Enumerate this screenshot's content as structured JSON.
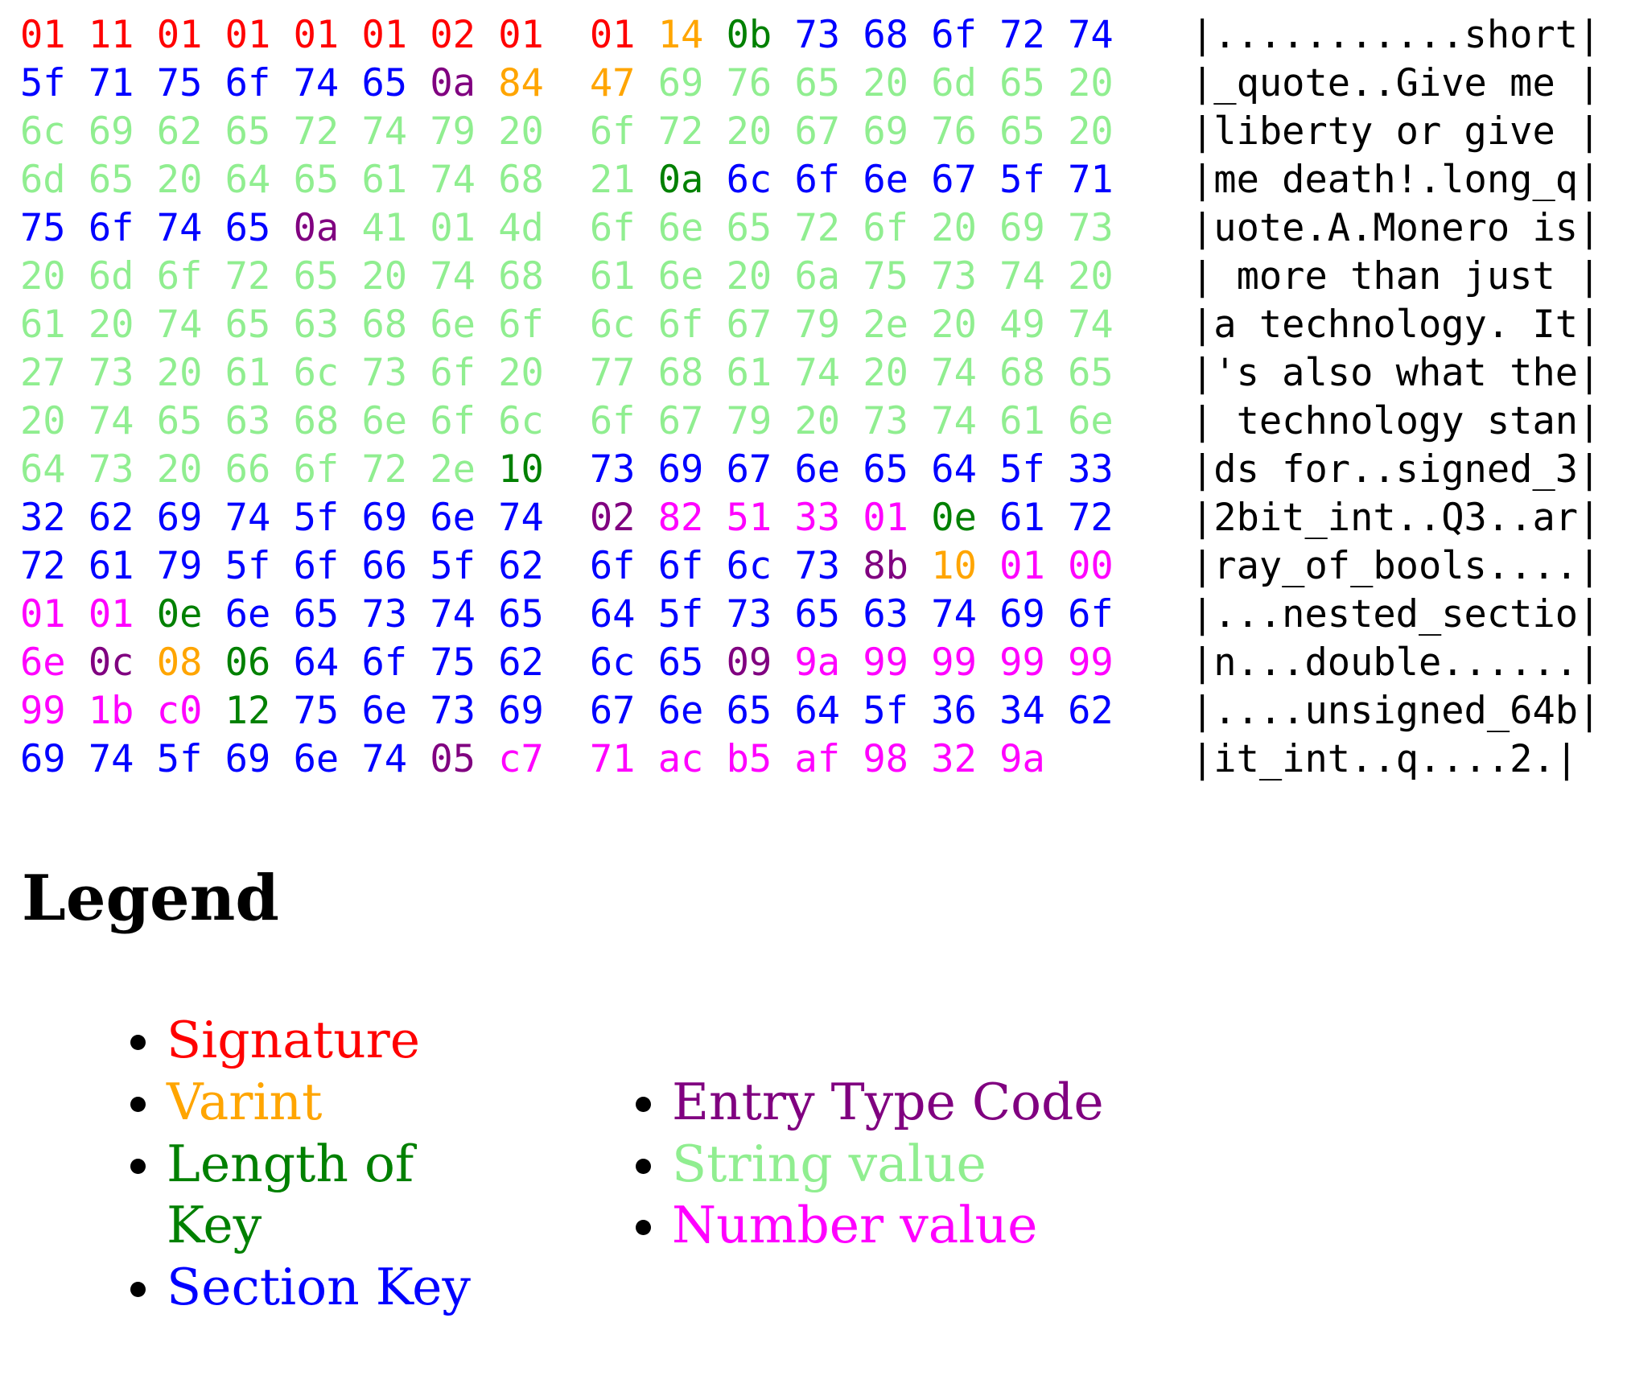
{
  "legend": {
    "title": "Legend",
    "left_items": [
      {
        "label": "Signature",
        "color": "r"
      },
      {
        "label": "Varint",
        "color": "o"
      },
      {
        "label": "Length of Key",
        "color": "g"
      },
      {
        "label": "Section Key",
        "color": "b"
      }
    ],
    "right_items": [
      {
        "label": "Entry Type Code",
        "color": "p"
      },
      {
        "label": "String value",
        "color": "s"
      },
      {
        "label": "Number value",
        "color": "m"
      }
    ]
  },
  "hexdump": {
    "colors": {
      "r": "#ff0000",
      "o": "#ffa500",
      "g": "#008000",
      "b": "#0000ff",
      "p": "#800080",
      "s": "#90ee90",
      "m": "#ff00ff"
    },
    "color_names": {
      "r": "signature",
      "o": "varint",
      "g": "length-of-key",
      "b": "section-key",
      "p": "entry-type-code",
      "s": "string-value",
      "m": "number-value"
    },
    "ascii_color": "#000000",
    "rows": [
      {
        "left": "01r 11r 01r 01r 01r 01r 02r 01r",
        "right": "01r 14o 0bg 73b 68b 6fb 72b 74b",
        "ascii": "|...........short|"
      },
      {
        "left": "5fb 71b 75b 6fb 74b 65b 0ap 84o",
        "right": "47o 69s 76s 65s 20s 6ds 65s 20s",
        "ascii": "|_quote..Give me |"
      },
      {
        "left": "6cs 69s 62s 65s 72s 74s 79s 20s",
        "right": "6fs 72s 20s 67s 69s 76s 65s 20s",
        "ascii": "|liberty or give |"
      },
      {
        "left": "6ds 65s 20s 64s 65s 61s 74s 68s",
        "right": "21s 0ag 6cb 6fb 6eb 67b 5fb 71b",
        "ascii": "|me death!.long_q|"
      },
      {
        "left": "75b 6fb 74b 65b 0ap 41s 01s 4ds",
        "right": "6fs 6es 65s 72s 6fs 20s 69s 73s",
        "ascii": "|uote.A.Monero is|"
      },
      {
        "left": "20s 6ds 6fs 72s 65s 20s 74s 68s",
        "right": "61s 6es 20s 6as 75s 73s 74s 20s",
        "ascii": "| more than just |"
      },
      {
        "left": "61s 20s 74s 65s 63s 68s 6es 6fs",
        "right": "6cs 6fs 67s 79s 2es 20s 49s 74s",
        "ascii": "|a technology. It|"
      },
      {
        "left": "27s 73s 20s 61s 6cs 73s 6fs 20s",
        "right": "77s 68s 61s 74s 20s 74s 68s 65s",
        "ascii": "|'s also what the|"
      },
      {
        "left": "20s 74s 65s 63s 68s 6es 6fs 6cs",
        "right": "6fs 67s 79s 20s 73s 74s 61s 6es",
        "ascii": "| technology stan|"
      },
      {
        "left": "64s 73s 20s 66s 6fs 72s 2es 10g",
        "right": "73b 69b 67b 6eb 65b 64b 5fb 33b",
        "ascii": "|ds for..signed_3|"
      },
      {
        "left": "32b 62b 69b 74b 5fb 69b 6eb 74b",
        "right": "02p 82m 51m 33m 01m 0eg 61b 72b",
        "ascii": "|2bit_int..Q3..ar|"
      },
      {
        "left": "72b 61b 79b 5fb 6fb 66b 5fb 62b",
        "right": "6fb 6fb 6cb 73b 8bp 10o 01m 00m",
        "ascii": "|ray_of_bools....|"
      },
      {
        "left": "01m 01m 0eg 6eb 65b 73b 74b 65b",
        "right": "64b 5fb 73b 65b 63b 74b 69b 6fb",
        "ascii": "|...nested_sectio|"
      },
      {
        "left": "6em 0cp 08o 06g 64b 6fb 75b 62b",
        "right": "6cb 65b 09p 9am 99m 99m 99m 99m",
        "ascii": "|n...double......|"
      },
      {
        "left": "99m 1bm c0m 12g 75b 6eb 73b 69b",
        "right": "67b 6eb 65b 64b 5fb 36b 34b 62b",
        "ascii": "|....unsigned_64b|"
      },
      {
        "left": "69b 74b 5fb 69b 6eb 74b 05p c7m",
        "right": "71m acm b5m afm 98m 32m 9am",
        "ascii": "|it_int..q....2.|"
      }
    ]
  }
}
